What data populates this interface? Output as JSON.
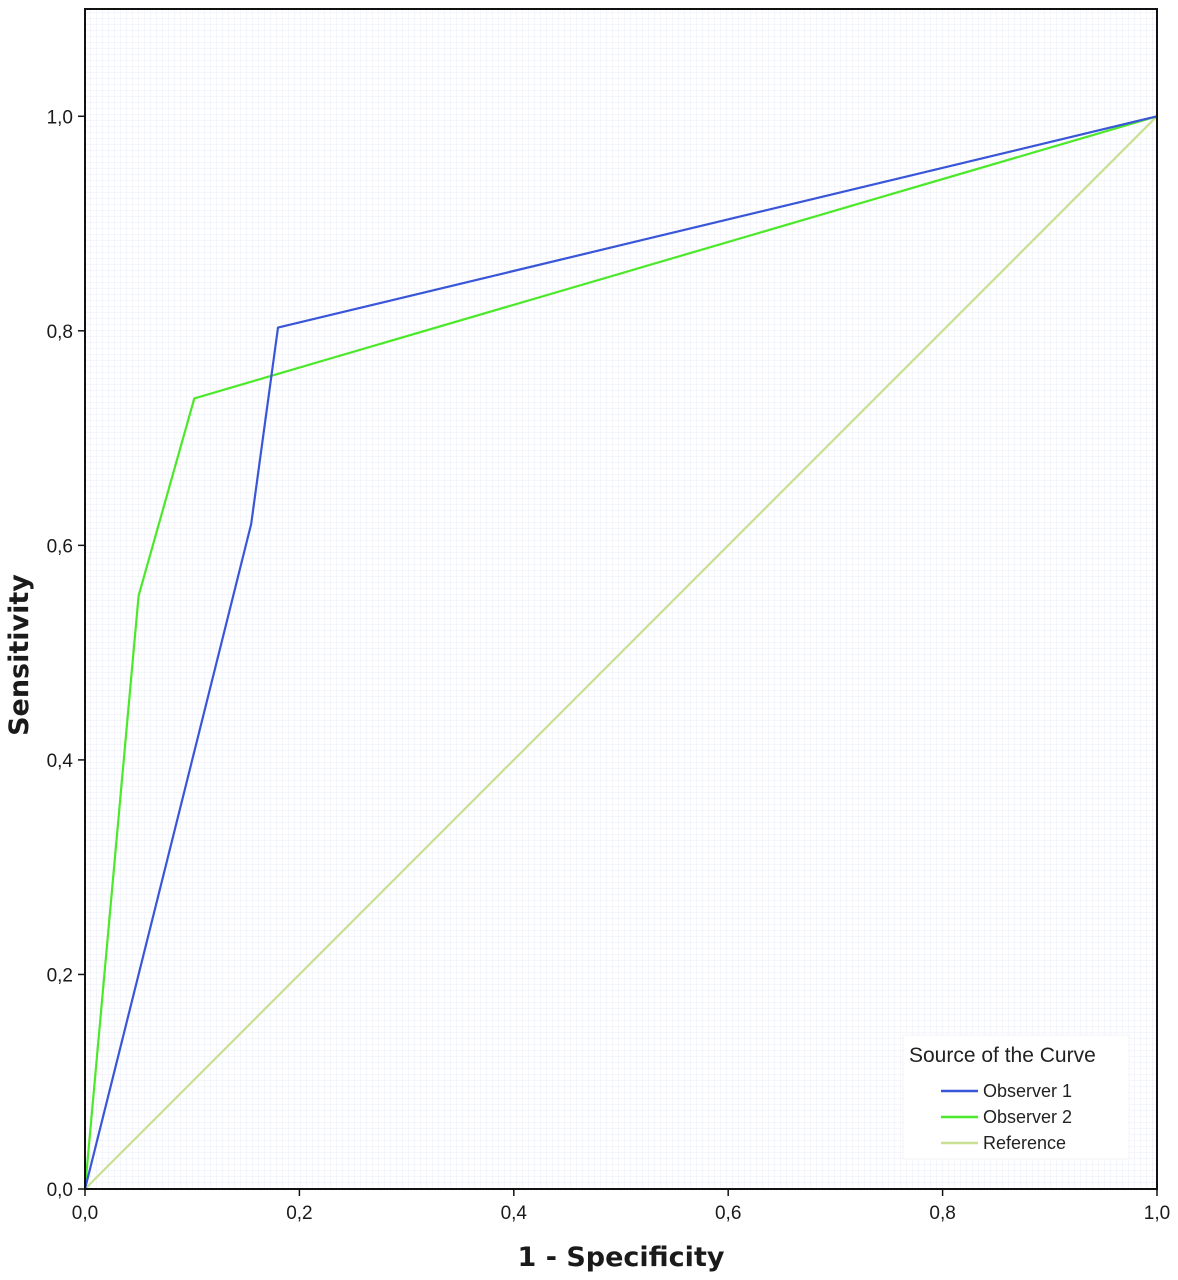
{
  "chart_data": {
    "type": "line",
    "xlabel": "1 - Specificity",
    "ylabel": "Sensitivity",
    "xlim": [
      0,
      1
    ],
    "ylim": [
      0,
      1.1
    ],
    "x_ticks": [
      "0,0",
      "0,2",
      "0,4",
      "0,6",
      "0,8",
      "1,0"
    ],
    "y_ticks": [
      "0,0",
      "0,2",
      "0,4",
      "0,6",
      "0,8",
      "1,0"
    ],
    "grid": true,
    "legend": {
      "title": "Source of the Curve",
      "placement": "bottom-right"
    },
    "series": [
      {
        "name": "Observer 1",
        "color": "#3a56d8",
        "points": [
          [
            0,
            0
          ],
          [
            0.155,
            0.62
          ],
          [
            0.18,
            0.803
          ],
          [
            1,
            1
          ]
        ]
      },
      {
        "name": "Observer 2",
        "color": "#4ce82a",
        "points": [
          [
            0,
            0
          ],
          [
            0.05,
            0.553
          ],
          [
            0.102,
            0.737
          ],
          [
            1,
            1
          ]
        ]
      },
      {
        "name": "Reference",
        "color": "#c9df92",
        "points": [
          [
            0,
            0
          ],
          [
            1,
            1
          ]
        ]
      }
    ]
  }
}
